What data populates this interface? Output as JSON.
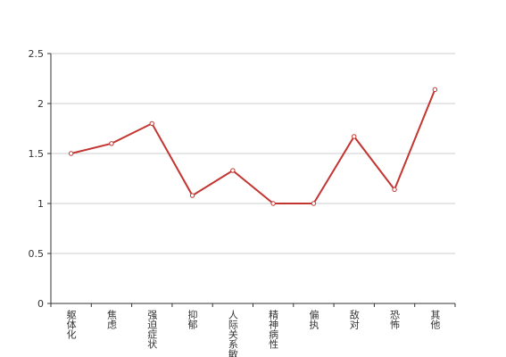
{
  "chart_data": {
    "type": "line",
    "categories": [
      "躯体化",
      "焦虑",
      "强迫症状",
      "抑郁",
      "人际关系敏感",
      "精神病性",
      "偏执",
      "敌对",
      "恐怖",
      "其他"
    ],
    "values": [
      1.5,
      1.6,
      1.8,
      1.08,
      1.33,
      1.0,
      1.0,
      1.67,
      1.14,
      2.14
    ],
    "color": "#c23531",
    "ylim": [
      0,
      2.5
    ],
    "yticks": [
      0,
      0.5,
      1,
      1.5,
      2,
      2.5
    ],
    "grid": true
  }
}
